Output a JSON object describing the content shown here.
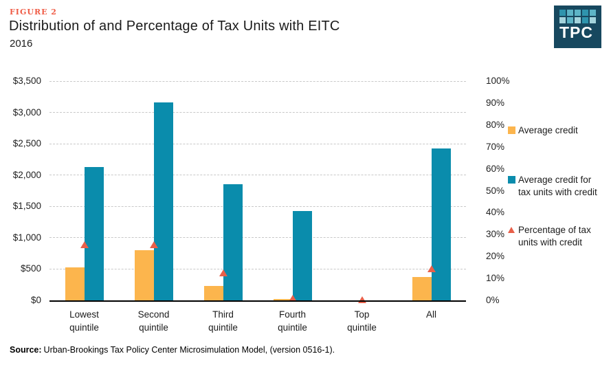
{
  "header": {
    "figure_label": "FIGURE 2",
    "title": "Distribution of and Percentage of Tax Units with EITC",
    "subtitle": "2016"
  },
  "logo": {
    "text": "TPC",
    "background": "#17485f",
    "square_colors": [
      "#2f94ad",
      "#5db4c6",
      "#5db4c6",
      "#2f94ad",
      "#5db4c6",
      "#a3d3dc",
      "#5db4c6",
      "#a3d3dc",
      "#2f94ad",
      "#a3d3dc"
    ]
  },
  "source": {
    "label": "Source:",
    "text": "Urban-Brookings Tax Policy Center Microsimulation Model, (version 0516-1)."
  },
  "colors": {
    "figure_label_accent": "#ef5b45",
    "bar_average_credit": "#fcb54d",
    "bar_average_credit_with": "#0a8cac",
    "marker_percentage": "#e8604a",
    "gridline": "#c8c8c8",
    "axis": "#000000"
  },
  "chart_data": {
    "type": "bar",
    "title": "Distribution of and Percentage of Tax Units with EITC",
    "subtitle": "2016",
    "categories": [
      "Lowest quintile",
      "Second quintile",
      "Third quintile",
      "Fourth quintile",
      "Top quintile",
      "All"
    ],
    "category_label_lines": [
      [
        "Lowest",
        "quintile"
      ],
      [
        "Second",
        "quintile"
      ],
      [
        "Third",
        "quintile"
      ],
      [
        "Fourth",
        "quintile"
      ],
      [
        "Top",
        "quintile"
      ],
      [
        "All"
      ]
    ],
    "series": [
      {
        "name": "Average credit",
        "type": "bar",
        "axis": "left",
        "color": "#fcb54d",
        "values": [
          530,
          800,
          230,
          20,
          0,
          370
        ]
      },
      {
        "name": "Average credit for tax units with credit",
        "type": "bar",
        "axis": "left",
        "color": "#0a8cac",
        "values": [
          2130,
          3160,
          1850,
          1430,
          0,
          2420
        ]
      },
      {
        "name": "Percentage of tax units with credit",
        "type": "scatter",
        "marker": "triangle-up",
        "axis": "right",
        "color": "#e8604a",
        "values": [
          25.5,
          25.5,
          12.5,
          1,
          0.2,
          14.5
        ]
      }
    ],
    "left_axis": {
      "min": 0,
      "max": 3500,
      "tick_step": 500,
      "tick_labels": [
        "$0",
        "$500",
        "$1,000",
        "$1,500",
        "$2,000",
        "$2,500",
        "$3,000",
        "$3,500"
      ]
    },
    "right_axis": {
      "min": 0,
      "max": 100,
      "tick_step": 10,
      "tick_labels": [
        "0%",
        "10%",
        "20%",
        "30%",
        "40%",
        "50%",
        "60%",
        "70%",
        "80%",
        "90%",
        "100%"
      ]
    },
    "grid": "horizontal dashed lines at $500 intervals",
    "legend_position": "right"
  }
}
